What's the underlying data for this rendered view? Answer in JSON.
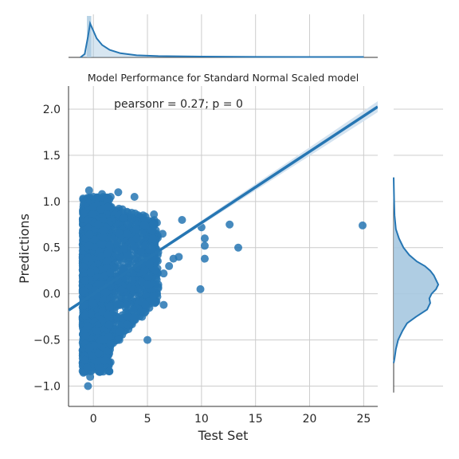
{
  "chart_data": {
    "type": "scatter",
    "title": "Model Performance for Standard Normal Scaled model",
    "xlabel": "Test Set",
    "ylabel": "Predictions",
    "annotation": "pearsonr = 0.27; p = 0",
    "xlim": [
      -2.3,
      26.3
    ],
    "ylim": [
      -1.22,
      2.25
    ],
    "xticks": [
      0,
      5,
      10,
      15,
      20,
      25
    ],
    "yticks": [
      -1.0,
      -0.5,
      0.0,
      0.5,
      1.0,
      1.5,
      2.0
    ],
    "xtick_labels": [
      "0",
      "5",
      "10",
      "15",
      "20",
      "25"
    ],
    "ytick_labels": [
      "−1.0",
      "−0.5",
      "0.0",
      "0.5",
      "1.0",
      "1.5",
      "2.0"
    ],
    "grid": true,
    "regression": {
      "slope": 0.0771,
      "intercept": -0.0017,
      "x_range": [
        -2.3,
        26.3
      ]
    },
    "dense_region": {
      "x_range": [
        -1.0,
        6.0
      ],
      "y_range": [
        -0.82,
        1.1
      ]
    },
    "points": [
      [
        -0.4,
        1.12
      ],
      [
        0.0,
        1.05
      ],
      [
        0.8,
        1.08
      ],
      [
        1.6,
        1.05
      ],
      [
        2.3,
        1.1
      ],
      [
        3.8,
        1.05
      ],
      [
        4.6,
        0.85
      ],
      [
        5.6,
        0.86
      ],
      [
        8.2,
        0.8
      ],
      [
        10.0,
        0.72
      ],
      [
        12.6,
        0.75
      ],
      [
        24.9,
        0.74
      ],
      [
        10.3,
        0.6
      ],
      [
        10.3,
        0.52
      ],
      [
        10.3,
        0.38
      ],
      [
        13.4,
        0.5
      ],
      [
        7.9,
        0.4
      ],
      [
        7.4,
        0.38
      ],
      [
        7.0,
        0.3
      ],
      [
        6.5,
        0.22
      ],
      [
        9.9,
        0.05
      ],
      [
        6.0,
        0.1
      ],
      [
        6.5,
        -0.12
      ],
      [
        5.0,
        0.1
      ],
      [
        4.5,
        -0.25
      ],
      [
        5.0,
        -0.5
      ],
      [
        3.2,
        -0.25
      ],
      [
        3.8,
        -0.25
      ],
      [
        2.4,
        -0.5
      ],
      [
        1.6,
        -0.55
      ],
      [
        -0.5,
        -1.0
      ],
      [
        -0.3,
        -0.9
      ],
      [
        -0.6,
        -0.8
      ],
      [
        6.0,
        0.45
      ],
      [
        5.5,
        0.6
      ],
      [
        6.4,
        0.65
      ],
      [
        4.8,
        -0.12
      ],
      [
        5.2,
        0.32
      ],
      [
        3.1,
        0.65
      ],
      [
        4.0,
        0.6
      ],
      [
        2.8,
        0.82
      ],
      [
        3.2,
        0.75
      ]
    ],
    "top_marginal": {
      "bin_edges": [
        -0.6,
        -0.2
      ],
      "bin_heights": [
        1.0
      ],
      "kde": [
        [
          -1.2,
          0.0
        ],
        [
          -0.8,
          0.08
        ],
        [
          -0.5,
          0.5
        ],
        [
          -0.3,
          0.82
        ],
        [
          -0.1,
          0.7
        ],
        [
          0.3,
          0.46
        ],
        [
          0.8,
          0.3
        ],
        [
          1.5,
          0.18
        ],
        [
          2.5,
          0.1
        ],
        [
          4.0,
          0.05
        ],
        [
          6.0,
          0.03
        ],
        [
          10.0,
          0.02
        ],
        [
          15.0,
          0.012
        ],
        [
          20.0,
          0.01
        ],
        [
          25.0,
          0.01
        ]
      ]
    },
    "right_marginal": {
      "kde": [
        [
          1.26,
          0.0
        ],
        [
          1.0,
          0.01
        ],
        [
          0.85,
          0.02
        ],
        [
          0.7,
          0.05
        ],
        [
          0.6,
          0.12
        ],
        [
          0.5,
          0.22
        ],
        [
          0.42,
          0.35
        ],
        [
          0.35,
          0.52
        ],
        [
          0.3,
          0.7
        ],
        [
          0.25,
          0.82
        ],
        [
          0.2,
          0.9
        ],
        [
          0.15,
          0.95
        ],
        [
          0.1,
          1.0
        ],
        [
          0.05,
          0.95
        ],
        [
          0.0,
          0.85
        ],
        [
          -0.05,
          0.8
        ],
        [
          -0.1,
          0.82
        ],
        [
          -0.17,
          0.75
        ],
        [
          -0.25,
          0.5
        ],
        [
          -0.32,
          0.3
        ],
        [
          -0.4,
          0.2
        ],
        [
          -0.5,
          0.1
        ],
        [
          -0.6,
          0.05
        ],
        [
          -0.7,
          0.02
        ],
        [
          -0.75,
          0.0
        ]
      ]
    },
    "colors": {
      "primary": "#2676b3",
      "fill": "#a6c8e0",
      "ci": "#cfe0ee",
      "grid": "#cccccc"
    }
  }
}
